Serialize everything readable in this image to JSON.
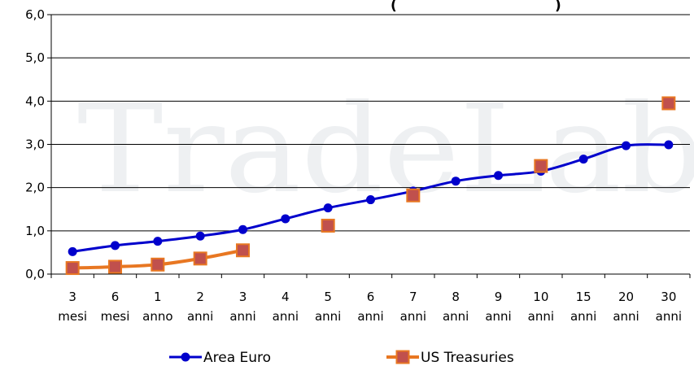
{
  "chart_data": {
    "type": "line",
    "title_fragment": "(",
    "title_fragment_end": ")",
    "watermark": "TradeLab",
    "ylim": [
      0,
      6
    ],
    "yticks": [
      "0,0",
      "1,0",
      "2,0",
      "3,0",
      "4,0",
      "5,0",
      "6,0"
    ],
    "categories": [
      [
        "3",
        "mesi"
      ],
      [
        "6",
        "mesi"
      ],
      [
        "1",
        "anno"
      ],
      [
        "2",
        "anni"
      ],
      [
        "3",
        "anni"
      ],
      [
        "4",
        "anni"
      ],
      [
        "5",
        "anni"
      ],
      [
        "6",
        "anni"
      ],
      [
        "7",
        "anni"
      ],
      [
        "8",
        "anni"
      ],
      [
        "9",
        "anni"
      ],
      [
        "10",
        "anni"
      ],
      [
        "15",
        "anni"
      ],
      [
        "20",
        "anni"
      ],
      [
        "30",
        "anni"
      ]
    ],
    "grid": true,
    "legend_position": "bottom",
    "series": [
      {
        "name": "Area Euro",
        "color": "#0000cc",
        "marker": "circle",
        "values": [
          0.52,
          0.66,
          0.76,
          0.88,
          1.03,
          1.28,
          1.53,
          1.72,
          1.92,
          2.15,
          2.28,
          2.38,
          2.66,
          2.97,
          2.99
        ]
      },
      {
        "name": "US Treasuries",
        "color": "#e87722",
        "marker": "square",
        "marker_fill": "#c0504d",
        "values": [
          0.14,
          0.17,
          0.22,
          0.36,
          0.55,
          null,
          1.12,
          null,
          1.82,
          null,
          null,
          2.5,
          null,
          null,
          3.95
        ],
        "connect_first": 5
      }
    ]
  }
}
